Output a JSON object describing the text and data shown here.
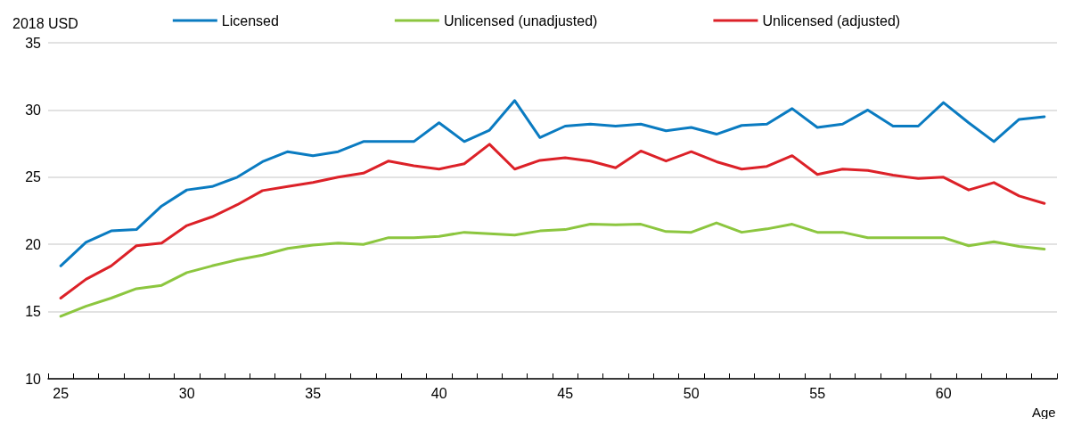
{
  "chart_data": {
    "type": "line",
    "xlabel": "Age",
    "ylabel": "2018 USD",
    "categories": [
      "25",
      null,
      null,
      null,
      null,
      "30",
      null,
      null,
      null,
      null,
      "35",
      null,
      null,
      null,
      null,
      "40",
      null,
      null,
      null,
      null,
      "45",
      null,
      null,
      null,
      null,
      "50",
      null,
      null,
      null,
      null,
      "55",
      null,
      null,
      null,
      null,
      "60",
      null,
      null,
      null,
      null
    ],
    "series": [
      {
        "name": "Licensed",
        "color": "#0a7bc1",
        "values": [
          18.4,
          20.15,
          21.0,
          21.1,
          22.85,
          24.05,
          24.3,
          25.0,
          26.15,
          26.9,
          26.6,
          26.9,
          27.65,
          27.65,
          27.65,
          29.05,
          27.65,
          28.5,
          30.7,
          27.95,
          28.8,
          28.95,
          28.8,
          28.95,
          28.45,
          28.7,
          28.2,
          28.85,
          28.95,
          30.1,
          28.7,
          28.95,
          30.0,
          28.8,
          28.8,
          30.55,
          29.05,
          27.65,
          29.3,
          29.5
        ]
      },
      {
        "name": "Unlicensed (unadjusted)",
        "color": "#8cc63f",
        "values": [
          14.65,
          15.4,
          16.0,
          16.7,
          16.95,
          17.9,
          18.4,
          18.85,
          19.2,
          19.7,
          19.95,
          20.1,
          20.0,
          20.5,
          20.5,
          20.6,
          20.9,
          20.8,
          20.7,
          21.0,
          21.1,
          21.5,
          21.45,
          21.5,
          20.95,
          20.9,
          21.6,
          20.9,
          21.15,
          21.5,
          20.9,
          20.9,
          20.5,
          20.5,
          20.5,
          20.5,
          19.9,
          20.2,
          19.85,
          19.65
        ]
      },
      {
        "name": "Unlicensed (adjusted)",
        "color": "#dc2128",
        "values": [
          16.0,
          17.4,
          18.4,
          19.9,
          20.1,
          21.4,
          22.05,
          22.95,
          24.0,
          24.3,
          24.6,
          25.0,
          25.3,
          26.2,
          25.85,
          25.6,
          26.0,
          27.45,
          25.6,
          26.25,
          26.45,
          26.2,
          25.7,
          26.95,
          26.2,
          26.9,
          26.15,
          25.6,
          25.8,
          26.6,
          25.2,
          25.6,
          25.5,
          25.15,
          24.9,
          25.0,
          24.05,
          24.6,
          23.6,
          23.05
        ]
      }
    ],
    "ylim": [
      10,
      35
    ],
    "yticks": [
      10,
      15,
      20,
      25,
      30,
      35
    ],
    "grid": "y",
    "legend": "top",
    "marker": "none",
    "line_style": "solid"
  }
}
